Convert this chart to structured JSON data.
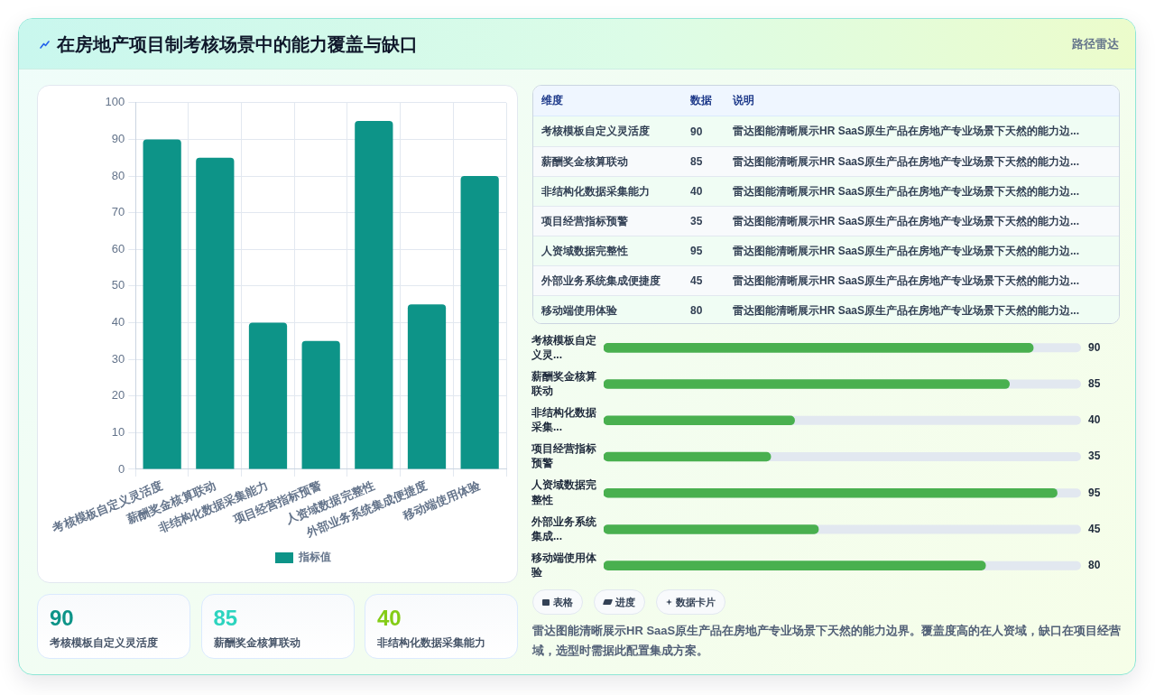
{
  "chart_data": [
    {
      "type": "other",
      "title": "在房地产项目制考核场景中的能力覆盖与缺口",
      "subtitle": "路径雷达"
    },
    {
      "type": "bar",
      "categories": [
        "考核模板自定义灵活度",
        "薪酬奖金核算联动",
        "非结构化数据采集能力",
        "项目经营指标预警",
        "人资域数据完整性",
        "外部业务系统集成便捷度",
        "移动端使用体验"
      ],
      "series": [
        {
          "name": "指标值",
          "color": "#0d9488",
          "values": [
            90,
            85,
            40,
            35,
            95,
            45,
            80
          ]
        }
      ],
      "ylim": [
        0,
        100
      ],
      "yticks": [
        0,
        10,
        20,
        30,
        40,
        50,
        60,
        70,
        80,
        90,
        100
      ],
      "grid": true,
      "legend": "bottom"
    },
    {
      "type": "other",
      "categories": [
        "考核模板自定义灵活度",
        "薪酬奖金核算联动",
        "非结构化数据采集能力"
      ],
      "values": [
        90,
        85,
        40
      ],
      "data_labels": true
    },
    {
      "type": "other",
      "categories": [
        "考核模板自定义灵活度",
        "薪酬奖金核算联动",
        "非结构化数据采集能力",
        "项目经营指标预警",
        "人资域数据完整性",
        "外部业务系统集成便捷度",
        "移动端使用体验"
      ],
      "values": [
        90,
        85,
        40,
        35,
        95,
        45,
        80
      ],
      "data_labels": true,
      "annotations": [
        "维度",
        "数据",
        "说明",
        "雷达图能清晰展示HR SaaS原生产品在房地产专业场景下天然的能力边...",
        "雷达图能清晰展示HR SaaS原生产品在房地产专业场景下天然的能力边...",
        "雷达图能清晰展示HR SaaS原生产品在房地产专业场景下天然的能力边...",
        "雷达图能清晰展示HR SaaS原生产品在房地产专业场景下天然的能力边...",
        "雷达图能清晰展示HR SaaS原生产品在房地产专业场景下天然的能力边...",
        "雷达图能清晰展示HR SaaS原生产品在房地产专业场景下天然的能力边...",
        "雷达图能清晰展示HR SaaS原生产品在房地产专业场景下天然的能力边..."
      ]
    },
    {
      "type": "bar",
      "orientation": "horizontal",
      "categories": [
        "考核模板自定义灵...",
        "薪酬奖金核算联动",
        "非结构化数据采集...",
        "项目经营指标预警",
        "人资域数据完整性",
        "外部业务系统集成...",
        "移动端使用体验"
      ],
      "series": [
        {
          "color": "#49b04f",
          "values": [
            90,
            85,
            40,
            35,
            95,
            45,
            80
          ]
        }
      ],
      "xlim": [
        0,
        100
      ],
      "tick_labels": "y",
      "data_labels": true
    },
    {
      "type": "other",
      "categories": [
        "表格",
        "进度",
        "数据卡片"
      ],
      "annotations": [
        "雷达图能清晰展示HR SaaS原生产品在房地产专业场景下天然的能力边界。覆盖度高的在人资域，缺口在项目经营域，选型时需据此配置集成方案。"
      ]
    }
  ]
}
